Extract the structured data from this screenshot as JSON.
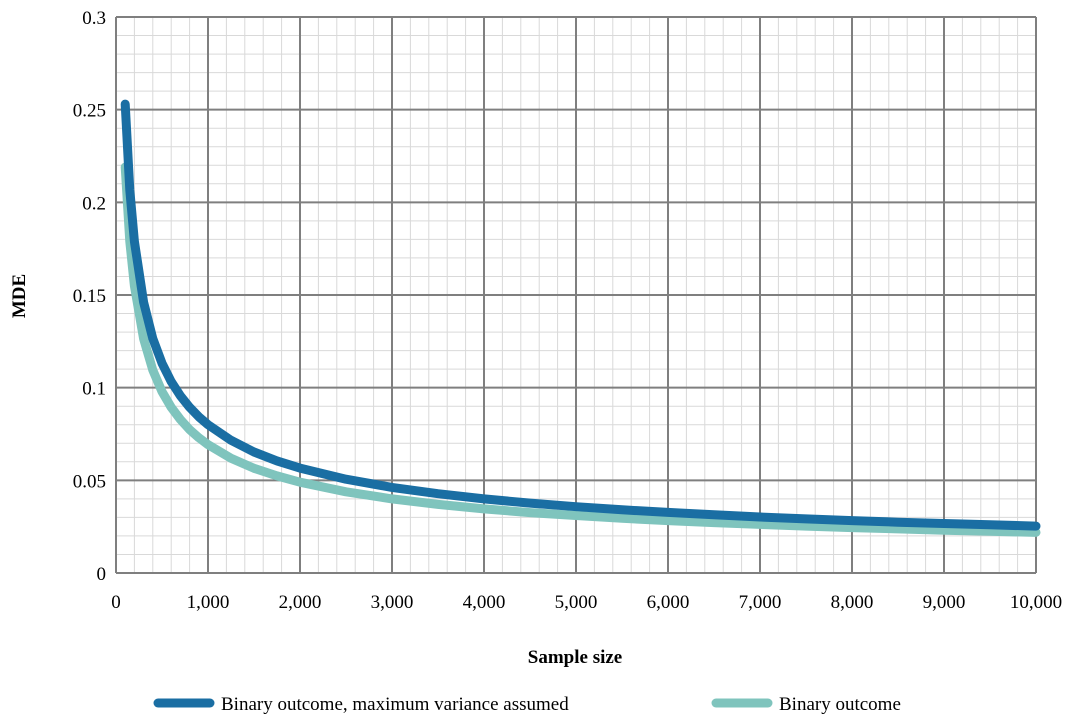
{
  "chart_data": {
    "type": "line",
    "title": "",
    "xlabel": "Sample size",
    "ylabel": "MDE",
    "xlim": [
      0,
      10000
    ],
    "ylim": [
      0,
      0.3
    ],
    "x_ticks": [
      0,
      1000,
      2000,
      3000,
      4000,
      5000,
      6000,
      7000,
      8000,
      9000,
      10000
    ],
    "x_tick_labels": [
      "0",
      "1,000",
      "2,000",
      "3,000",
      "4,000",
      "5,000",
      "6,000",
      "7,000",
      "8,000",
      "9,000",
      "10,000"
    ],
    "y_ticks": [
      0,
      0.05,
      0.1,
      0.15,
      0.2,
      0.25,
      0.3
    ],
    "y_tick_labels": [
      "0",
      "0.05",
      "0.1",
      "0.15",
      "0.2",
      "0.25",
      "0.3"
    ],
    "grid": "major and minor",
    "legend_position": "bottom",
    "series": [
      {
        "name": "Binary outcome, maximum variance assumed",
        "color": "#1a6ea3",
        "x": [
          100,
          150,
          200,
          300,
          400,
          500,
          600,
          700,
          800,
          900,
          1000,
          1250,
          1500,
          1750,
          2000,
          2500,
          3000,
          3500,
          4000,
          4500,
          5000,
          5500,
          6000,
          6500,
          7000,
          7500,
          8000,
          8500,
          9000,
          9500,
          10000
        ],
        "values": [
          0.253,
          0.2066,
          0.1789,
          0.1461,
          0.1265,
          0.1132,
          0.1033,
          0.0956,
          0.0894,
          0.0843,
          0.08,
          0.0716,
          0.0653,
          0.0605,
          0.0566,
          0.0506,
          0.0462,
          0.0428,
          0.04,
          0.0377,
          0.0358,
          0.0341,
          0.0327,
          0.0314,
          0.0302,
          0.0292,
          0.0283,
          0.0274,
          0.0267,
          0.026,
          0.0253
        ]
      },
      {
        "name": "Binary outcome",
        "color": "#7fc4bd",
        "x": [
          100,
          150,
          200,
          300,
          400,
          500,
          600,
          700,
          800,
          900,
          1000,
          1250,
          1500,
          1750,
          2000,
          2500,
          3000,
          3500,
          4000,
          4500,
          5000,
          5500,
          6000,
          6500,
          7000,
          7500,
          8000,
          8500,
          9000,
          9500,
          10000
        ],
        "values": [
          0.219,
          0.1788,
          0.1549,
          0.1264,
          0.1095,
          0.0979,
          0.0894,
          0.0828,
          0.0774,
          0.073,
          0.0693,
          0.0619,
          0.0565,
          0.0524,
          0.049,
          0.0438,
          0.04,
          0.037,
          0.0346,
          0.0326,
          0.031,
          0.0295,
          0.0283,
          0.0272,
          0.0262,
          0.0253,
          0.0245,
          0.0238,
          0.0231,
          0.0225,
          0.0219
        ]
      }
    ]
  }
}
